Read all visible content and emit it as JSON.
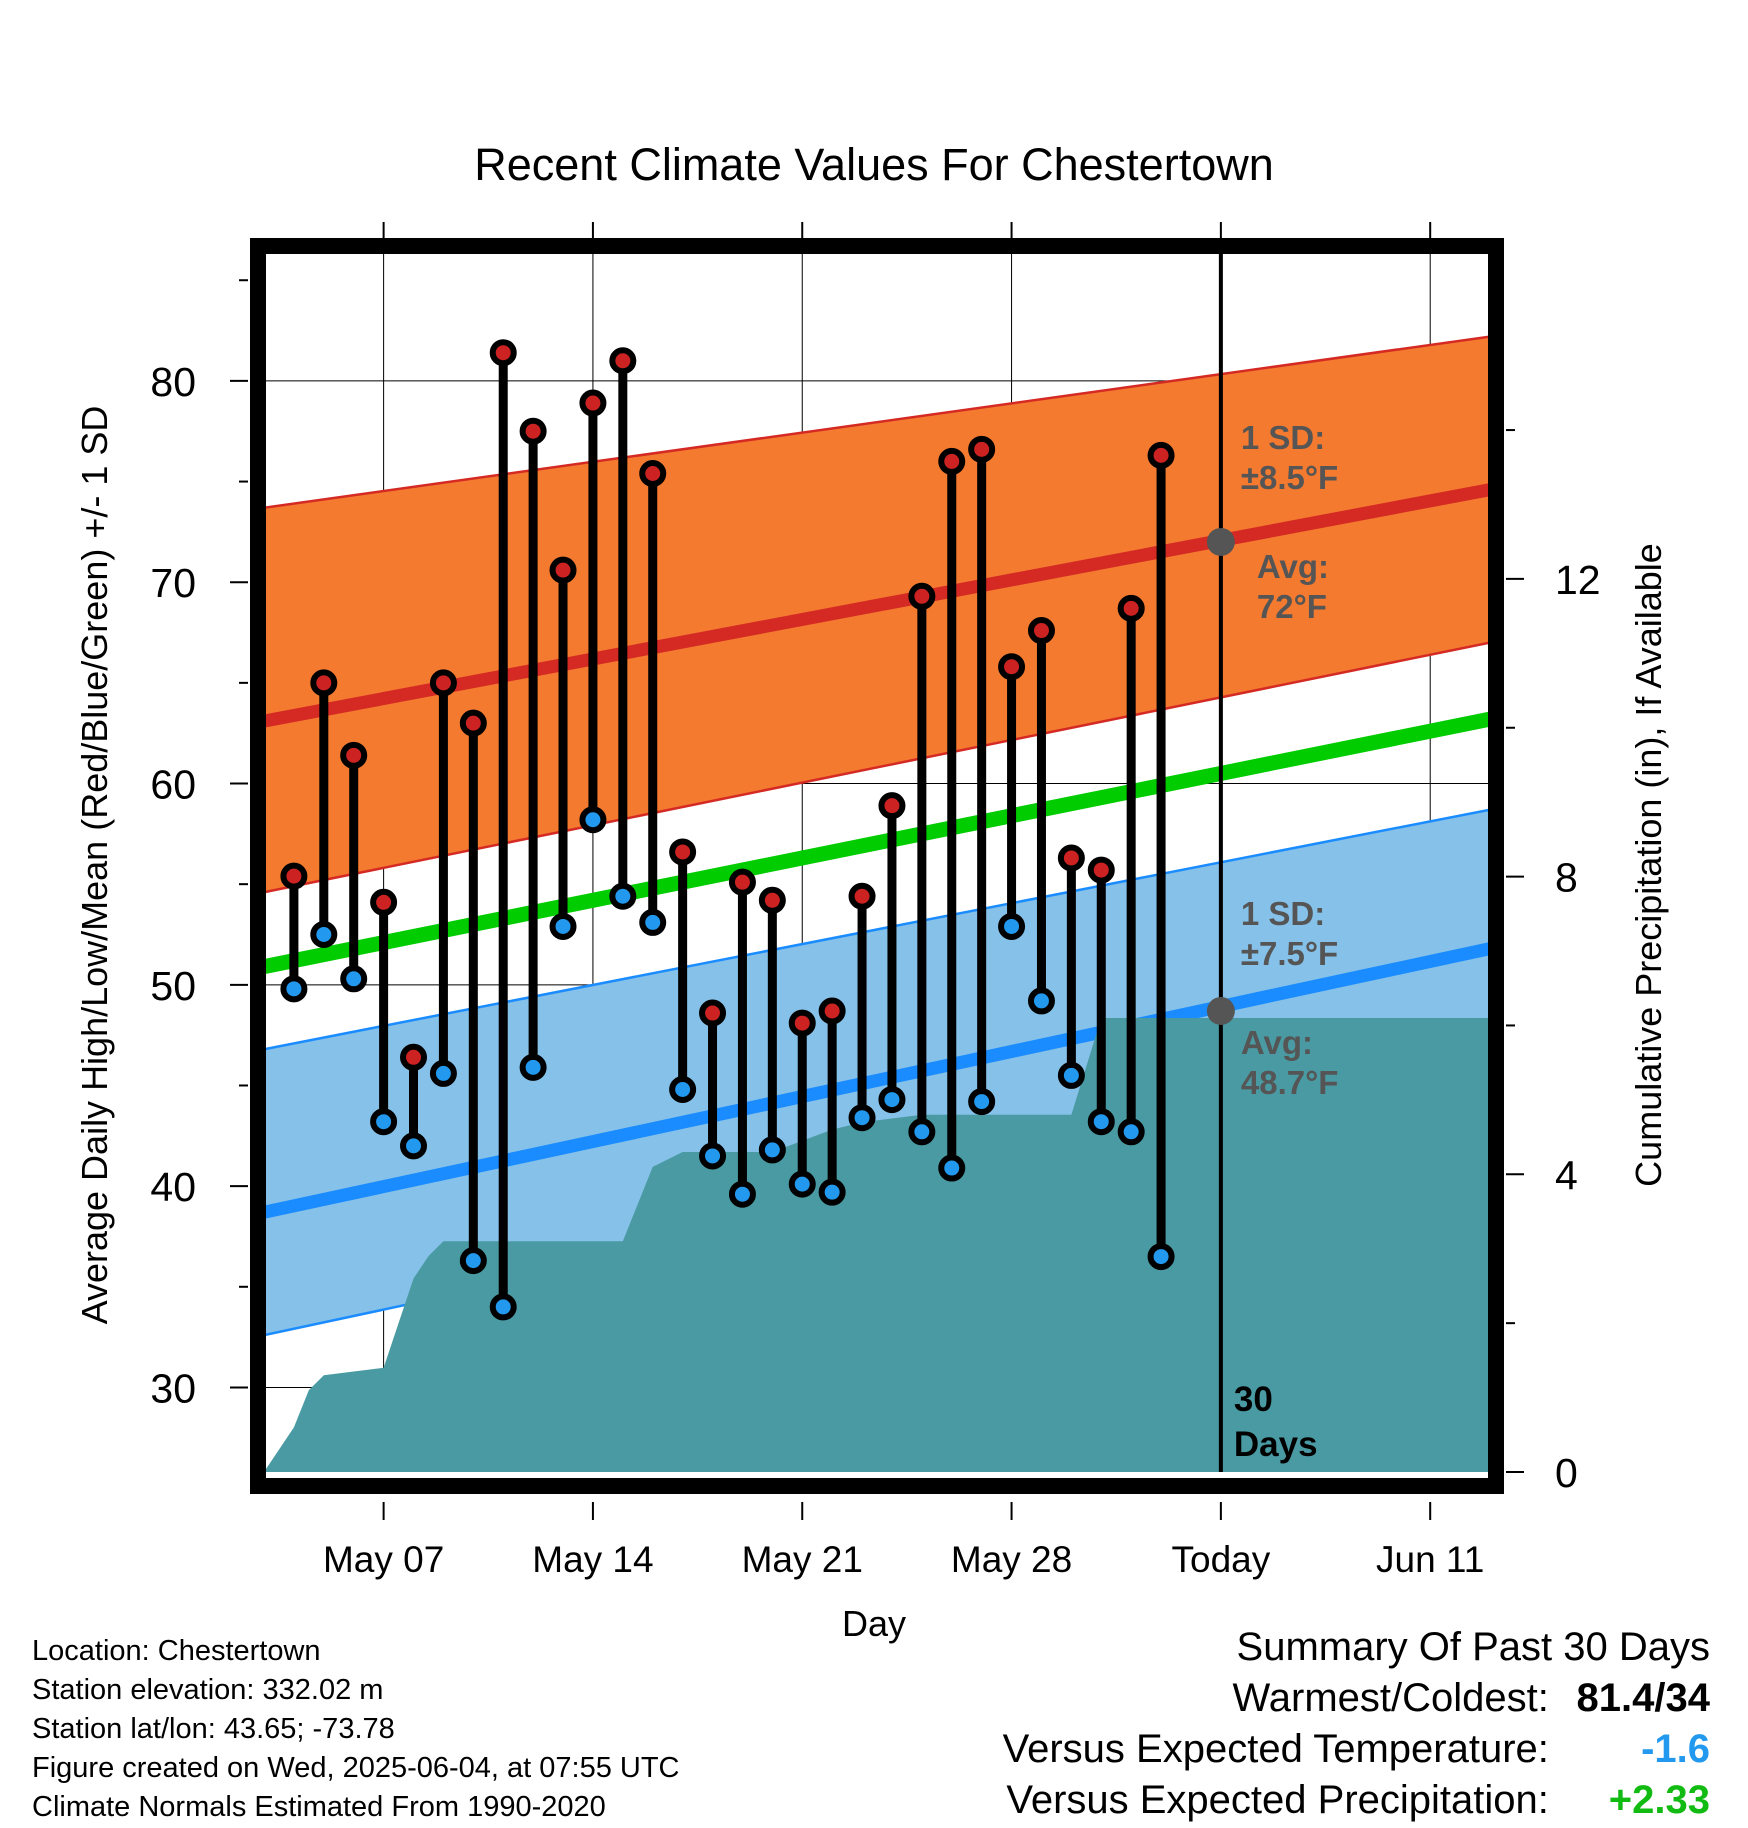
{
  "chart_data": {
    "type": "line",
    "title": "Recent Climate Values For Chestertown",
    "xlabel": "Day",
    "ylabel": "Average Daily High/Low/Mean (Red/Blue/Green) +/- 1 SD",
    "y2label": "Cumulative Precipitation (in), If Available",
    "ylim": [
      25.8,
      86.8
    ],
    "y_ticks": [
      "30",
      "40",
      "50",
      "60",
      "70",
      "80"
    ],
    "y2lim": [
      0,
      16.5
    ],
    "y2_ticks": [
      "0",
      "4",
      "8",
      "12"
    ],
    "x_range": [
      "2025-05-03",
      "2025-06-13"
    ],
    "x_ticks": [
      {
        "date": "2025-05-07",
        "label": "May 07"
      },
      {
        "date": "2025-05-14",
        "label": "May 14"
      },
      {
        "date": "2025-05-21",
        "label": "May 21"
      },
      {
        "date": "2025-05-28",
        "label": "May 28"
      },
      {
        "date": "2025-06-04",
        "label": "Today"
      },
      {
        "date": "2025-06-11",
        "label": "Jun 11"
      }
    ],
    "grid": true,
    "today": "2025-06-04",
    "today_label": "30 Days",
    "normal_high": {
      "start_date": "2025-05-03",
      "start": 63.1,
      "end_date": "2025-06-13",
      "end": 74.6,
      "sd_upper_start": 73.7,
      "sd_upper_end": 82.2,
      "sd_lower_start": 54.6,
      "sd_lower_end": 67.0,
      "color": "#f47a30",
      "line_color": "#d42a23"
    },
    "normal_low": {
      "start_date": "2025-05-03",
      "start": 38.7,
      "end_date": "2025-06-13",
      "end": 51.8,
      "sd_upper_start": 46.8,
      "sd_upper_end": 58.7,
      "sd_lower_start": 32.6,
      "sd_lower_end": 45.6,
      "color": "#85c1e8",
      "line_color": "#1a8cff"
    },
    "normal_mean": {
      "start_date": "2025-05-03",
      "start": 50.9,
      "end_date": "2025-06-13",
      "end": 63.2,
      "color": "#00cc00"
    },
    "annotations": {
      "high_sd": [
        "1 SD:",
        "±8.5°F"
      ],
      "high_avg": [
        "Avg:",
        "72°F"
      ],
      "high_avg_value": 72,
      "low_sd": [
        "1 SD:",
        "±7.5°F"
      ],
      "low_avg": [
        "Avg:",
        "48.7°F"
      ],
      "low_avg_value": 48.7
    },
    "series": [
      {
        "name": "High",
        "color": "#cc2222"
      },
      {
        "name": "Low",
        "color": "#2299ee"
      }
    ],
    "daily": [
      {
        "date": "2025-05-04",
        "high": 55.4,
        "low": 49.8
      },
      {
        "date": "2025-05-05",
        "high": 65.0,
        "low": 52.5
      },
      {
        "date": "2025-05-06",
        "high": 61.4,
        "low": 50.3
      },
      {
        "date": "2025-05-07",
        "high": 54.1,
        "low": 43.2
      },
      {
        "date": "2025-05-08",
        "high": 46.4,
        "low": 42.0
      },
      {
        "date": "2025-05-09",
        "high": 65.0,
        "low": 45.6
      },
      {
        "date": "2025-05-10",
        "high": 63.0,
        "low": 36.3
      },
      {
        "date": "2025-05-11",
        "high": 81.4,
        "low": 34.0
      },
      {
        "date": "2025-05-12",
        "high": 77.5,
        "low": 45.9
      },
      {
        "date": "2025-05-13",
        "high": 70.6,
        "low": 52.9
      },
      {
        "date": "2025-05-14",
        "high": 78.9,
        "low": 58.2
      },
      {
        "date": "2025-05-15",
        "high": 81.0,
        "low": 54.4
      },
      {
        "date": "2025-05-16",
        "high": 75.4,
        "low": 53.1
      },
      {
        "date": "2025-05-17",
        "high": 56.6,
        "low": 44.8
      },
      {
        "date": "2025-05-18",
        "high": 48.6,
        "low": 41.5
      },
      {
        "date": "2025-05-19",
        "high": 55.1,
        "low": 39.6
      },
      {
        "date": "2025-05-20",
        "high": 54.2,
        "low": 41.8
      },
      {
        "date": "2025-05-21",
        "high": 48.1,
        "low": 40.1
      },
      {
        "date": "2025-05-22",
        "high": 48.7,
        "low": 39.7
      },
      {
        "date": "2025-05-23",
        "high": 54.4,
        "low": 43.4
      },
      {
        "date": "2025-05-24",
        "high": 58.9,
        "low": 44.3
      },
      {
        "date": "2025-05-25",
        "high": 69.3,
        "low": 42.7
      },
      {
        "date": "2025-05-26",
        "high": 76.0,
        "low": 40.9
      },
      {
        "date": "2025-05-27",
        "high": 76.6,
        "low": 44.2
      },
      {
        "date": "2025-05-28",
        "high": 65.8,
        "low": 52.9
      },
      {
        "date": "2025-05-29",
        "high": 67.6,
        "low": 49.2
      },
      {
        "date": "2025-05-30",
        "high": 56.3,
        "low": 45.5
      },
      {
        "date": "2025-05-31",
        "high": 55.7,
        "low": 43.2
      },
      {
        "date": "2025-06-01",
        "high": 68.7,
        "low": 42.7
      },
      {
        "date": "2025-06-02",
        "high": 76.3,
        "low": 36.5
      }
    ],
    "precipitation": [
      {
        "date": "2025-05-03",
        "value": 0.0
      },
      {
        "date": "2025-05-04",
        "value": 0.6
      },
      {
        "date": "2025-05-04T12:00",
        "value": 1.1
      },
      {
        "date": "2025-05-05",
        "value": 1.3
      },
      {
        "date": "2025-05-06",
        "value": 1.35
      },
      {
        "date": "2025-05-07",
        "value": 1.4
      },
      {
        "date": "2025-05-08",
        "value": 2.6
      },
      {
        "date": "2025-05-08T12:00",
        "value": 2.9
      },
      {
        "date": "2025-05-09",
        "value": 3.1
      },
      {
        "date": "2025-05-15",
        "value": 3.1
      },
      {
        "date": "2025-05-16",
        "value": 4.1
      },
      {
        "date": "2025-05-17",
        "value": 4.3
      },
      {
        "date": "2025-05-20",
        "value": 4.3
      },
      {
        "date": "2025-05-21",
        "value": 4.45
      },
      {
        "date": "2025-05-22",
        "value": 4.6
      },
      {
        "date": "2025-05-23",
        "value": 4.7
      },
      {
        "date": "2025-05-25",
        "value": 4.8
      },
      {
        "date": "2025-05-30",
        "value": 4.8
      },
      {
        "date": "2025-05-31",
        "value": 6.1
      },
      {
        "date": "2025-06-13",
        "value": 6.1
      }
    ],
    "precip_color": "#4a9aa3"
  },
  "info": {
    "location": "Location: Chestertown",
    "elevation": "Station elevation: 332.02 m",
    "latlon": "Station lat/lon: 43.65; -73.78",
    "created": "Figure created on Wed, 2025-06-04, at 07:55 UTC",
    "normals": "Climate Normals Estimated From 1990-2020"
  },
  "summary": {
    "title": "Summary Of Past 30 Days",
    "warmest_coldest_label": "Warmest/Coldest:",
    "warmest_coldest_value": "81.4/34",
    "temp_label": "Versus Expected Temperature:",
    "temp_value": "-1.6",
    "temp_color": "#2299ee",
    "precip_label": "Versus Expected Precipitation:",
    "precip_value": "+2.33",
    "precip_color": "#11bb11"
  }
}
